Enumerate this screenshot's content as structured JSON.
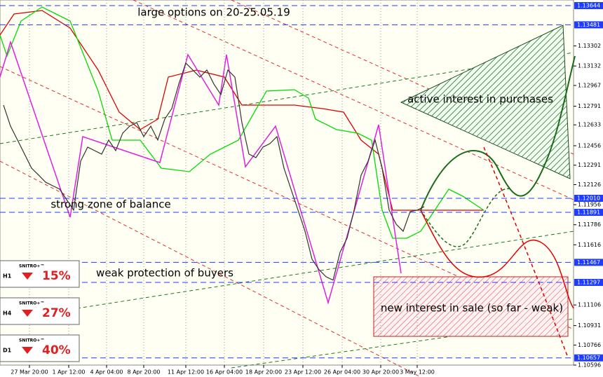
{
  "chart_data": {
    "type": "line",
    "title": "large options on 20-25.05.19",
    "ylim": [
      1.10596,
      1.13644
    ],
    "xlim": [
      -0.5,
      81.3
    ],
    "yticks": [
      1.13302,
      1.13132,
      1.12967,
      1.12791,
      1.12633,
      1.12456,
      1.12291,
      1.12126,
      1.11956,
      1.11786,
      1.11616,
      1.11106,
      1.10931,
      1.10766,
      1.10596
    ],
    "levels": [
      1.13644,
      1.13481,
      {
        "value": 1.1201,
        "label": "1.12010"
      },
      1.11891,
      1.11467,
      1.11297,
      1.10657
    ],
    "level_color": "#1e3cff",
    "xticks": [
      {
        "value": 3.7,
        "label": "27 Mar 20:00"
      },
      {
        "value": 9.3,
        "label": "1 Apr 12:00"
      },
      {
        "value": 14.7,
        "label": "4 Apr 04:00"
      },
      {
        "value": 20,
        "label": "8 Apr 20:00"
      },
      {
        "value": 26,
        "label": "11 Apr 12:00"
      },
      {
        "value": 31.5,
        "label": "16 Apr 04:00"
      },
      {
        "value": 37.1,
        "label": "18 Apr 20:00"
      },
      {
        "value": 42.7,
        "label": "23 Apr 12:00"
      },
      {
        "value": 48.3,
        "label": "26 Apr 04:00"
      },
      {
        "value": 53.8,
        "label": "30 Apr 20:00"
      },
      {
        "value": 59,
        "label": "3 May 12:00"
      }
    ],
    "series": [
      {
        "color": "#333333",
        "values": [
          1.12801,
          1.12622,
          1.12504,
          1.12385,
          1.12266,
          1.12207,
          1.12147,
          1.12117,
          1.12088,
          1.11999,
          1.1191,
          1.12325,
          1.12444,
          1.12414,
          1.12385,
          1.12504,
          1.12414,
          1.12563,
          1.12622,
          1.12652,
          1.12533,
          1.12622,
          1.12504,
          1.12682,
          1.12771,
          1.12979,
          1.13157,
          1.13098,
          1.13038,
          1.13098,
          1.12979,
          1.1289,
          1.13098,
          1.13038,
          1.12652,
          1.12385,
          1.12355,
          1.12444,
          1.12474,
          1.12533,
          1.12266,
          1.12088,
          1.1191,
          1.11731,
          1.11494,
          1.11405,
          1.11345,
          1.11316,
          1.11553,
          1.11672,
          1.1191,
          1.12207,
          1.12325,
          1.12504,
          1.12266,
          1.1191,
          1.11791,
          1.11731,
          1.11898,
          1.1191,
          1.11939
        ]
      }
    ],
    "annotations": [
      "active interest in purchases",
      "strong zone of balance",
      "weak protection of buyers",
      "new interest in sale (so far - weak)"
    ],
    "indicators": [
      {
        "timeframe": "H1",
        "label": "SNITRO+™",
        "value": 15,
        "value_label": "15%"
      },
      {
        "timeframe": "H4",
        "label": "SNITRO+™",
        "value": 27,
        "value_label": "27%"
      },
      {
        "timeframe": "D1",
        "label": "SNITRO+™",
        "value": 40,
        "value_label": "40%"
      }
    ]
  }
}
